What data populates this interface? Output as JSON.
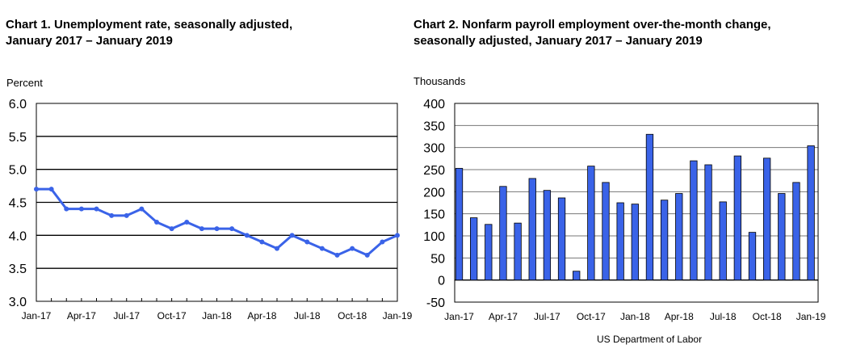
{
  "chart_data": [
    {
      "type": "line",
      "title_line1": "Chart 1. Unemployment rate, seasonally adjusted,",
      "title_line2": "January 2017 – January 2019",
      "ylabel": "Percent",
      "xlabel": "",
      "ylim": [
        3.0,
        6.0
      ],
      "yticks": [
        "6.0",
        "5.5",
        "5.0",
        "4.5",
        "4.0",
        "3.5",
        "3.0"
      ],
      "xtick_labels": [
        "Jan-17",
        "Apr-17",
        "Jul-17",
        "Oct-17",
        "Jan-18",
        "Apr-18",
        "Jul-18",
        "Oct-18",
        "Jan-19"
      ],
      "x": [
        "Jan-17",
        "Feb-17",
        "Mar-17",
        "Apr-17",
        "May-17",
        "Jun-17",
        "Jul-17",
        "Aug-17",
        "Sep-17",
        "Oct-17",
        "Nov-17",
        "Dec-17",
        "Jan-18",
        "Feb-18",
        "Mar-18",
        "Apr-18",
        "May-18",
        "Jun-18",
        "Jul-18",
        "Aug-18",
        "Sep-18",
        "Oct-18",
        "Nov-18",
        "Dec-18",
        "Jan-19"
      ],
      "values": [
        4.7,
        4.7,
        4.4,
        4.4,
        4.4,
        4.3,
        4.3,
        4.4,
        4.2,
        4.1,
        4.2,
        4.1,
        4.1,
        4.1,
        4.0,
        3.9,
        3.8,
        4.0,
        3.9,
        3.8,
        3.7,
        3.8,
        3.7,
        3.9,
        4.0
      ],
      "color": "#3a63e8",
      "grid": true
    },
    {
      "type": "bar",
      "title_line1": "Chart 2. Nonfarm payroll employment over-the-month change,",
      "title_line2": "seasonally adjusted, January 2017 – January 2019",
      "ylabel": "Thousands",
      "xlabel": "",
      "ylim": [
        -50,
        400
      ],
      "yticks": [
        "400",
        "350",
        "300",
        "250",
        "200",
        "150",
        "100",
        "50",
        "0",
        "-50"
      ],
      "xtick_labels": [
        "Jan-17",
        "Apr-17",
        "Jul-17",
        "Oct-17",
        "Jan-18",
        "Apr-18",
        "Jul-18",
        "Oct-18",
        "Jan-19"
      ],
      "x": [
        "Jan-17",
        "Feb-17",
        "Mar-17",
        "Apr-17",
        "May-17",
        "Jun-17",
        "Jul-17",
        "Aug-17",
        "Sep-17",
        "Oct-17",
        "Nov-17",
        "Dec-17",
        "Jan-18",
        "Feb-18",
        "Mar-18",
        "Apr-18",
        "May-18",
        "Jun-18",
        "Jul-18",
        "Aug-18",
        "Sep-18",
        "Oct-18",
        "Nov-18",
        "Dec-18",
        "Jan-19"
      ],
      "values": [
        253,
        141,
        126,
        212,
        129,
        230,
        203,
        186,
        20,
        258,
        221,
        175,
        172,
        330,
        181,
        196,
        270,
        261,
        177,
        281,
        108,
        276,
        196,
        221,
        304
      ],
      "color": "#3a63e8",
      "grid": true
    }
  ],
  "footer": {
    "credit": "US Department of Labor"
  }
}
